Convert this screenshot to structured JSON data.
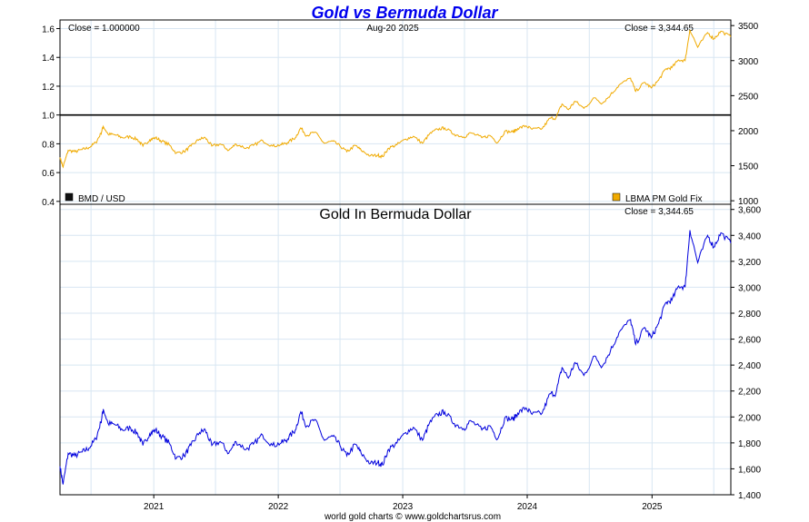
{
  "chart_data": [
    {
      "type": "line",
      "title": "Gold vs Bermuda Dollar",
      "header": {
        "left": "Close = 1.000000",
        "center": "Aug-20  2025",
        "right": "Close = 3,344.65"
      },
      "legend": {
        "left": "BMD / USD",
        "right": "LBMA PM Gold Fix"
      },
      "y_left_ticks": [
        "1.6",
        "1.4",
        "1.2",
        "1.0",
        "0.8",
        "0.6",
        "0.4"
      ],
      "y_right_ticks": [
        "3500",
        "3000",
        "2500",
        "2000",
        "1500",
        "1000"
      ],
      "ylim_left": [
        0.38,
        1.66
      ],
      "ylim_right": [
        950,
        3580
      ],
      "grid": true,
      "colors": {
        "gold": "#f0aa00",
        "bmd": "#000000"
      },
      "series": [
        {
          "name": "BMD / USD",
          "axis": "left",
          "x": [
            "2020-04-01",
            "2025-08-20"
          ],
          "values": [
            1.0,
            1.0
          ]
        },
        {
          "name": "LBMA PM Gold Fix",
          "axis": "right",
          "x": [
            "2020-04-01",
            "2020-04-10",
            "2020-04-25",
            "2020-05-15",
            "2020-06-05",
            "2020-06-25",
            "2020-07-15",
            "2020-07-30",
            "2020-08-06",
            "2020-08-20",
            "2020-09-10",
            "2020-10-01",
            "2020-10-25",
            "2020-11-15",
            "2020-11-30",
            "2020-12-20",
            "2021-01-06",
            "2021-01-25",
            "2021-02-15",
            "2021-03-08",
            "2021-03-31",
            "2021-04-20",
            "2021-05-15",
            "2021-06-01",
            "2021-06-20",
            "2021-07-15",
            "2021-08-09",
            "2021-08-30",
            "2021-09-29",
            "2021-10-20",
            "2021-11-16",
            "2021-12-15",
            "2022-01-10",
            "2022-01-28",
            "2022-02-20",
            "2022-03-08",
            "2022-03-25",
            "2022-04-18",
            "2022-05-16",
            "2022-06-10",
            "2022-07-01",
            "2022-07-21",
            "2022-08-15",
            "2022-09-01",
            "2022-09-28",
            "2022-10-20",
            "2022-11-03",
            "2022-11-20",
            "2022-12-15",
            "2023-01-10",
            "2023-02-01",
            "2023-02-28",
            "2023-03-20",
            "2023-04-13",
            "2023-05-04",
            "2023-06-01",
            "2023-06-29",
            "2023-07-20",
            "2023-08-21",
            "2023-09-15",
            "2023-10-06",
            "2023-10-27",
            "2023-11-20",
            "2023-12-04",
            "2023-12-28",
            "2024-01-15",
            "2024-02-14",
            "2024-03-08",
            "2024-03-25",
            "2024-04-12",
            "2024-05-01",
            "2024-05-20",
            "2024-06-15",
            "2024-07-17",
            "2024-08-08",
            "2024-09-01",
            "2024-09-26",
            "2024-10-30",
            "2024-11-14",
            "2024-12-10",
            "2024-12-30",
            "2025-01-20",
            "2025-02-10",
            "2025-02-28",
            "2025-03-20",
            "2025-04-08",
            "2025-04-22",
            "2025-05-15",
            "2025-06-13",
            "2025-07-01",
            "2025-07-22",
            "2025-08-20"
          ],
          "values": [
            1620,
            1480,
            1720,
            1700,
            1730,
            1760,
            1830,
            1960,
            2060,
            1950,
            1940,
            1900,
            1915,
            1870,
            1780,
            1870,
            1900,
            1850,
            1800,
            1680,
            1700,
            1780,
            1880,
            1900,
            1780,
            1810,
            1720,
            1810,
            1750,
            1790,
            1860,
            1780,
            1800,
            1830,
            1900,
            2040,
            1930,
            1980,
            1820,
            1850,
            1780,
            1700,
            1790,
            1720,
            1640,
            1650,
            1630,
            1750,
            1800,
            1880,
            1920,
            1820,
            1950,
            2020,
            2040,
            1950,
            1910,
            1970,
            1900,
            1930,
            1830,
            1990,
            1980,
            2030,
            2070,
            2020,
            2030,
            2180,
            2180,
            2380,
            2300,
            2420,
            2320,
            2470,
            2390,
            2510,
            2650,
            2750,
            2560,
            2690,
            2610,
            2720,
            2880,
            2900,
            3010,
            3000,
            3440,
            3190,
            3400,
            3310,
            3420,
            3340
          ]
        }
      ]
    },
    {
      "type": "line",
      "title": "Gold In Bermuda Dollar",
      "header": {
        "right": "Close = 3,344.65"
      },
      "y_right_ticks": [
        "3,600",
        "3,400",
        "3,200",
        "3,000",
        "2,800",
        "2,600",
        "2,400",
        "2,200",
        "2,000",
        "1,800",
        "1,600",
        "1,400"
      ],
      "ylim": [
        1400,
        3640
      ],
      "x_ticks": [
        "2021",
        "2022",
        "2023",
        "2024",
        "2025"
      ],
      "grid": true,
      "colors": {
        "line": "#0000dd"
      },
      "series": [
        {
          "name": "Gold In Bermuda Dollar",
          "same_as": "LBMA PM Gold Fix"
        }
      ]
    }
  ],
  "footer": "world gold charts © www.goldchartsrus.com"
}
